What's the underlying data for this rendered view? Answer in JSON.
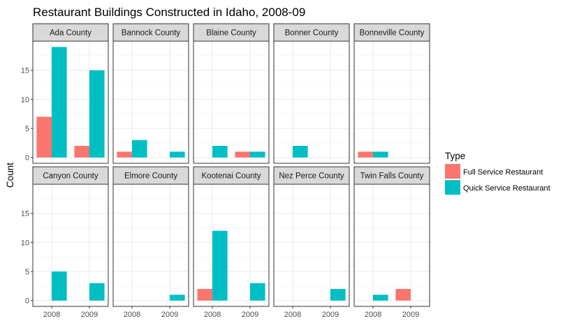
{
  "chart_data": {
    "type": "bar",
    "title": "Restaurant Buildings Constructed in Idaho, 2008-09",
    "xlabel": "",
    "ylabel": "Count",
    "categories": [
      "2008",
      "2009"
    ],
    "ylim": [
      0,
      20
    ],
    "yticks": [
      "0",
      "5",
      "10",
      "15"
    ],
    "grid": true,
    "legend": {
      "title": "Type",
      "position": "right",
      "entries": [
        {
          "label": "Full Service Restaurant",
          "color": "#F8766D"
        },
        {
          "label": "Quick Service Restaurant",
          "color": "#00BFC4"
        }
      ]
    },
    "panels": [
      {
        "name": "Ada County",
        "values": {
          "2008": {
            "full": 7,
            "quick": 19
          },
          "2009": {
            "full": 2,
            "quick": 15
          }
        }
      },
      {
        "name": "Bannock County",
        "values": {
          "2008": {
            "full": 1,
            "quick": 3
          },
          "2009": {
            "full": 0,
            "quick": 1
          }
        }
      },
      {
        "name": "Blaine County",
        "values": {
          "2008": {
            "full": 0,
            "quick": 2
          },
          "2009": {
            "full": 1,
            "quick": 1
          }
        }
      },
      {
        "name": "Bonner County",
        "values": {
          "2008": {
            "full": 0,
            "quick": 2
          },
          "2009": {
            "full": 0,
            "quick": 0
          }
        }
      },
      {
        "name": "Bonneville County",
        "values": {
          "2008": {
            "full": 1,
            "quick": 1
          },
          "2009": {
            "full": 0,
            "quick": 0
          }
        }
      },
      {
        "name": "Canyon County",
        "values": {
          "2008": {
            "full": 0,
            "quick": 5
          },
          "2009": {
            "full": 0,
            "quick": 3
          }
        }
      },
      {
        "name": "Elmore County",
        "values": {
          "2008": {
            "full": 0,
            "quick": 0
          },
          "2009": {
            "full": 0,
            "quick": 1
          }
        }
      },
      {
        "name": "Kootenai County",
        "values": {
          "2008": {
            "full": 2,
            "quick": 12
          },
          "2009": {
            "full": 0,
            "quick": 3
          }
        }
      },
      {
        "name": "Nez Perce County",
        "values": {
          "2008": {
            "full": 0,
            "quick": 0
          },
          "2009": {
            "full": 0,
            "quick": 2
          }
        }
      },
      {
        "name": "Twin Falls County",
        "values": {
          "2008": {
            "full": 0,
            "quick": 1
          },
          "2009": {
            "full": 2,
            "quick": 0
          }
        }
      }
    ]
  }
}
